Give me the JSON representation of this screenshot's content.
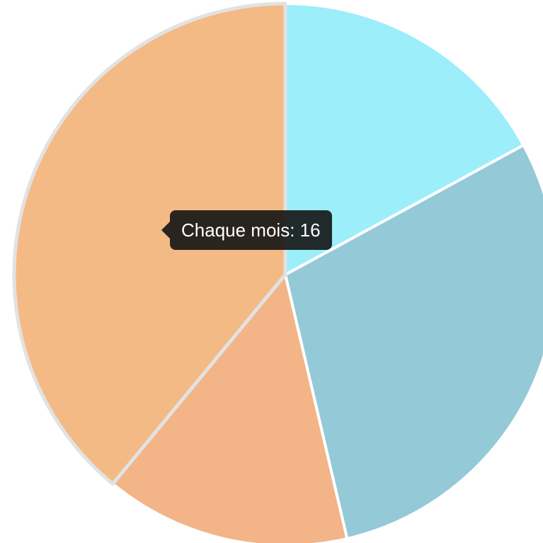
{
  "chart_data": {
    "type": "pie",
    "categories": [
      null,
      null,
      null,
      "Chaque mois"
    ],
    "values": [
      7,
      12,
      6,
      16
    ],
    "colors": [
      "#9ceefa",
      "#94c9d8",
      "#f3b487",
      "#f3ba86"
    ]
  }
}
